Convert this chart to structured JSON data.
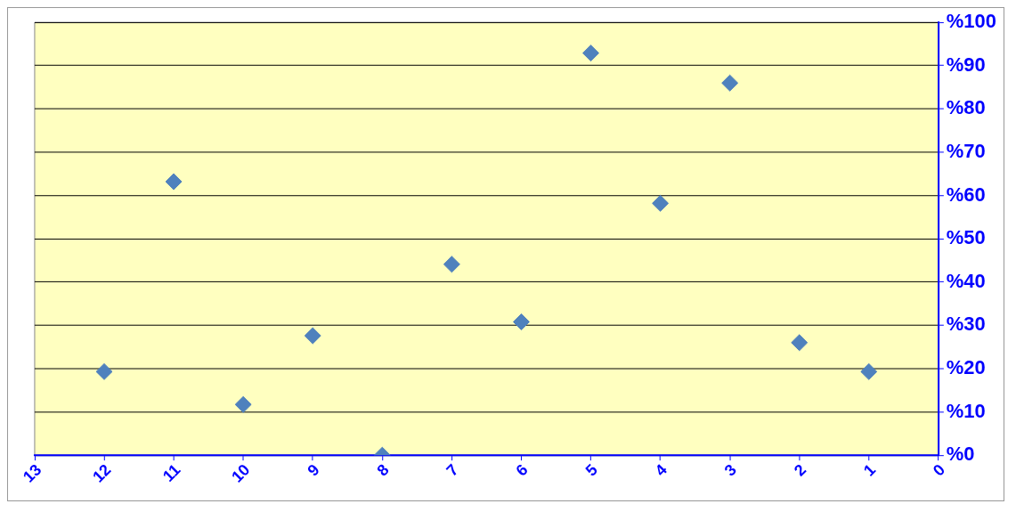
{
  "chart_data": {
    "type": "scatter",
    "x": [
      12,
      11,
      10,
      9,
      8,
      7,
      6,
      5,
      4,
      3,
      2,
      1
    ],
    "values": [
      19.3,
      63.2,
      11.7,
      27.6,
      0,
      44.1,
      30.8,
      92.9,
      58.2,
      86,
      26,
      19.3
    ],
    "color": "#4f81bd",
    "marker": "diamond",
    "grid": "y",
    "legend": false,
    "xlim": [
      13,
      0
    ],
    "xticks": [
      13,
      12,
      11,
      10,
      9,
      8,
      7,
      6,
      5,
      4,
      3,
      2,
      1,
      0
    ],
    "ylim": [
      0,
      100
    ],
    "yticks": [
      {
        "value": 0,
        "label": "%0"
      },
      {
        "value": 10,
        "label": "%10"
      },
      {
        "value": 20,
        "label": "%20"
      },
      {
        "value": 30,
        "label": "%30"
      },
      {
        "value": 40,
        "label": "%40"
      },
      {
        "value": 50,
        "label": "%50"
      },
      {
        "value": 60,
        "label": "%60"
      },
      {
        "value": 70,
        "label": "%70"
      },
      {
        "value": 80,
        "label": "%80"
      },
      {
        "value": 90,
        "label": "%90"
      },
      {
        "value": 100,
        "label": "%100"
      }
    ]
  }
}
